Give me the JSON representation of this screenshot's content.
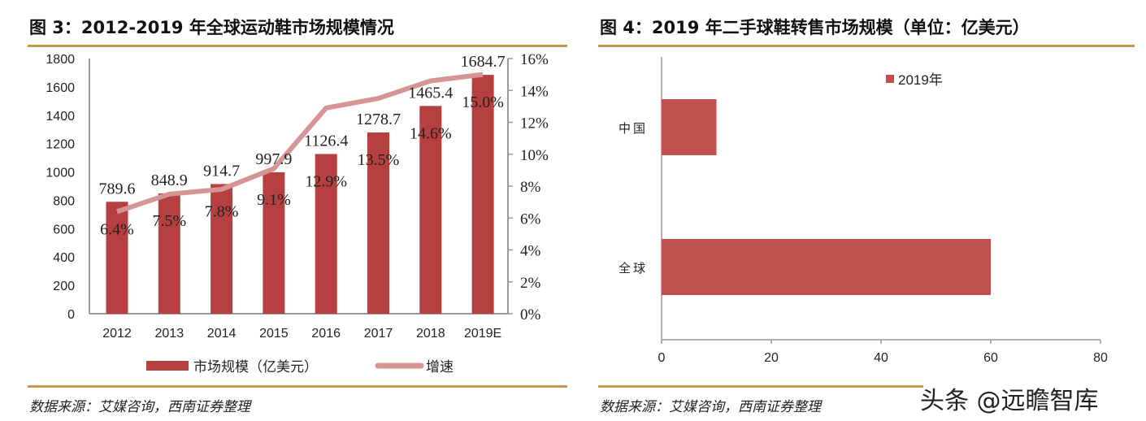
{
  "left": {
    "title": "图 3：2012-2019 年全球运动鞋市场规模情况",
    "source": "数据来源：艾媒咨询，西南证券整理",
    "chart_data": {
      "type": "bar+line",
      "categories": [
        "2012",
        "2013",
        "2014",
        "2015",
        "2016",
        "2017",
        "2018",
        "2019E"
      ],
      "series": [
        {
          "name": "市场规模（亿美元）",
          "type": "bar",
          "axis": "left",
          "color": "#b5403f",
          "values": [
            789.6,
            848.9,
            914.7,
            997.9,
            1126.4,
            1278.7,
            1465.4,
            1684.7
          ],
          "labels": [
            "789.6",
            "848.9",
            "914.7",
            "997.9",
            "1126.4",
            "1278.7",
            "1465.4",
            "1684.7"
          ]
        },
        {
          "name": "增速",
          "type": "line",
          "axis": "right",
          "color": "#d69595",
          "values": [
            6.4,
            7.5,
            7.8,
            9.1,
            12.9,
            13.5,
            14.6,
            15.0
          ],
          "labels": [
            "6.4%",
            "7.5%",
            "7.8%",
            "9.1%",
            "12.9%",
            "13.5%",
            "14.6%",
            "15.0%"
          ]
        }
      ],
      "yleft": {
        "range": [
          0,
          1800
        ],
        "ticks": [
          "0",
          "200",
          "400",
          "600",
          "800",
          "1000",
          "1200",
          "1400",
          "1600",
          "1800"
        ]
      },
      "yright": {
        "range": [
          0,
          16
        ],
        "ticks": [
          "0%",
          "2%",
          "4%",
          "6%",
          "8%",
          "10%",
          "12%",
          "14%",
          "16%"
        ]
      },
      "legend": "bottom",
      "grid": false
    }
  },
  "right": {
    "title": "图 4：2019 年二手球鞋转售市场规模（单位：亿美元）",
    "source": "数据来源：艾媒咨询，西南证券整理",
    "chart_data": {
      "type": "bar",
      "orientation": "horizontal",
      "categories": [
        "中国",
        "全球"
      ],
      "series": [
        {
          "name": "2019年",
          "color": "#c0504d",
          "values": [
            10,
            60
          ]
        }
      ],
      "xlim": [
        0,
        80
      ],
      "xticks": [
        "0",
        "20",
        "40",
        "60",
        "80"
      ],
      "legend": "top",
      "grid": false
    }
  },
  "watermark": "头条 @远瞻智库"
}
